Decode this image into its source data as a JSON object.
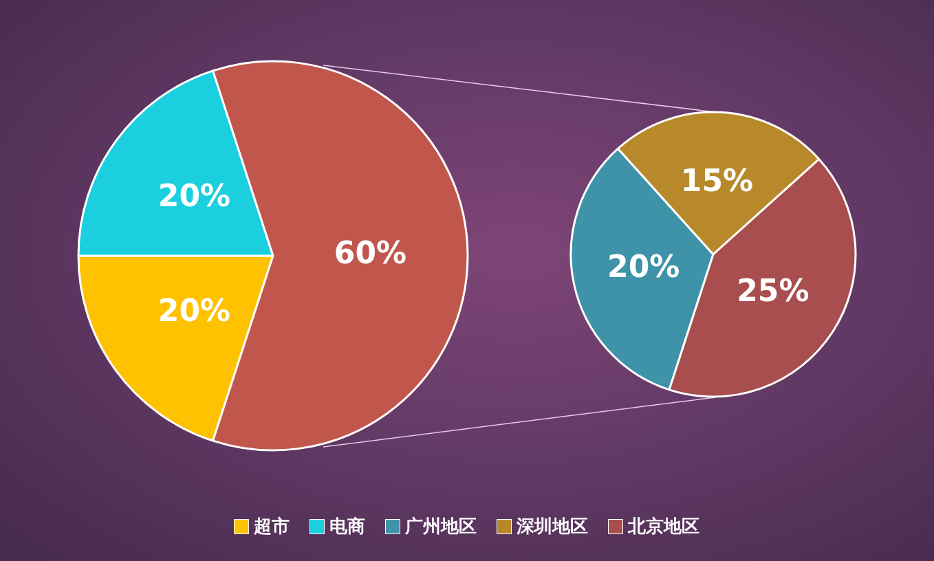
{
  "chart_data": [
    {
      "type": "pie",
      "categories": [
        "超市",
        "电商",
        null
      ],
      "values": [
        20,
        20,
        60
      ],
      "colors": [
        "#fec200",
        "#1ccfdf",
        "#c1574c"
      ],
      "value_labels": [
        "20%",
        "20%",
        "60%"
      ],
      "legend": "bottom"
    },
    {
      "type": "pie",
      "categories": [
        "广州地区",
        "深圳地区",
        "北京地区"
      ],
      "values": [
        20,
        15,
        25
      ],
      "colors": [
        "#3e93a8",
        "#b8892b",
        "#a84e4e"
      ],
      "value_labels": [
        "20%",
        "15%",
        "25%"
      ],
      "legend": "bottom"
    }
  ]
}
